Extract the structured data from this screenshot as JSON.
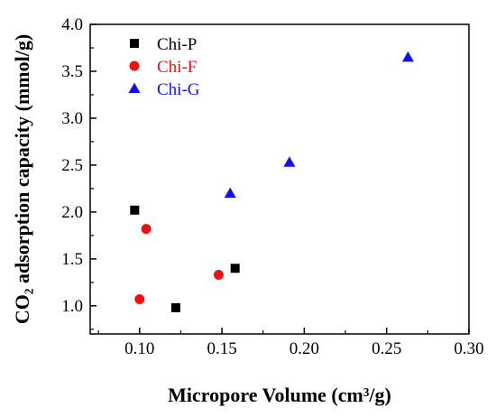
{
  "chart_data": {
    "type": "scatter",
    "xlabel": "Micropore Volume (cm³/g)",
    "ylabel": "CO₂ adsorption capacity (mmol/g)",
    "xlim": [
      0.07,
      0.3
    ],
    "ylim": [
      0.7,
      4.0
    ],
    "x_ticks": [
      "0.10",
      "0.15",
      "0.20",
      "0.25",
      "0.30"
    ],
    "y_ticks": [
      "1.0",
      "1.5",
      "2.0",
      "2.5",
      "3.0",
      "3.5",
      "4.0"
    ],
    "grid": false,
    "legend_position": "top-left",
    "series": [
      {
        "name": "Chi-P",
        "marker": "square",
        "color": "#000000",
        "points": [
          {
            "x": 0.097,
            "y": 2.02
          },
          {
            "x": 0.122,
            "y": 0.98
          },
          {
            "x": 0.158,
            "y": 1.4
          }
        ]
      },
      {
        "name": "Chi-F",
        "marker": "circle",
        "color": "#ee1111",
        "points": [
          {
            "x": 0.1,
            "y": 1.07
          },
          {
            "x": 0.104,
            "y": 1.82
          },
          {
            "x": 0.148,
            "y": 1.33
          }
        ]
      },
      {
        "name": "Chi-G",
        "marker": "triangle",
        "color": "#1111ee",
        "points": [
          {
            "x": 0.155,
            "y": 2.2
          },
          {
            "x": 0.191,
            "y": 2.53
          },
          {
            "x": 0.263,
            "y": 3.65
          }
        ]
      }
    ]
  }
}
